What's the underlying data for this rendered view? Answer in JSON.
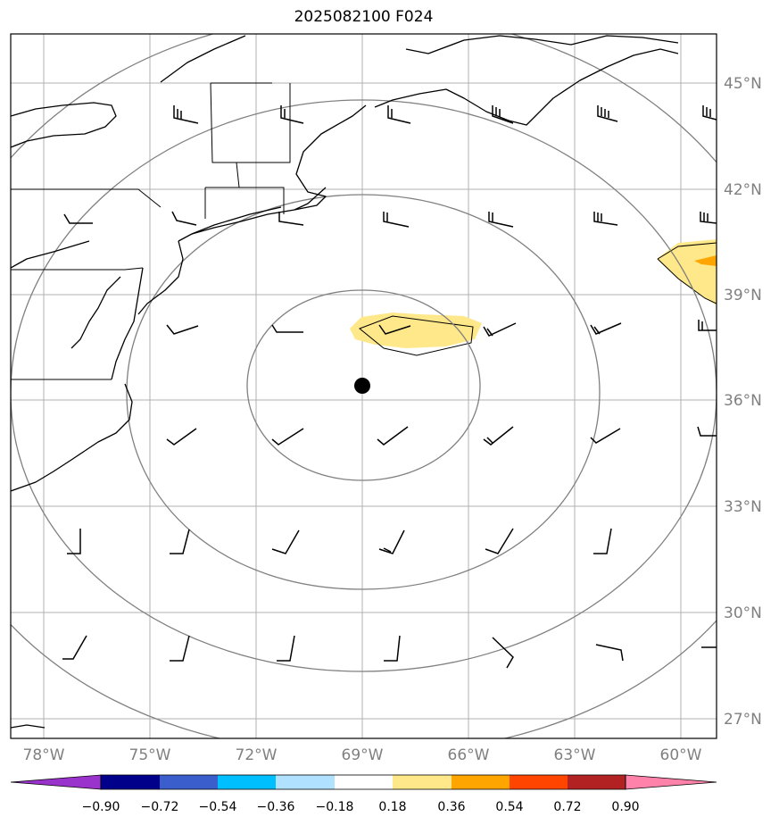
{
  "title": "2025082100 F024",
  "map": {
    "lat_labels": [
      "45°N",
      "42°N",
      "39°N",
      "36°N",
      "33°N",
      "30°N",
      "27°N"
    ],
    "lon_labels": [
      "78°W",
      "75°W",
      "72°W",
      "69°W",
      "66°W",
      "63°W",
      "60°W"
    ],
    "center_marker": "storm-center-dot",
    "colors": {
      "gridline": "#b0b0b0",
      "range_ring": "#808080",
      "coastline": "#000000",
      "positive_low": "#ffe88a",
      "positive_mid": "#ffa500"
    }
  },
  "colorbar": {
    "tick_labels": [
      "−0.90",
      "−0.72",
      "−0.54",
      "−0.36",
      "−0.18",
      "0.18",
      "0.36",
      "0.54",
      "0.72",
      "0.90"
    ],
    "colors": [
      "#9933cc",
      "#00008b",
      "#3a5fcd",
      "#00bfff",
      "#b0e2ff",
      "#ffffff",
      "#ffe88a",
      "#ffa500",
      "#ff4500",
      "#b22222",
      "#ff82ab"
    ]
  }
}
